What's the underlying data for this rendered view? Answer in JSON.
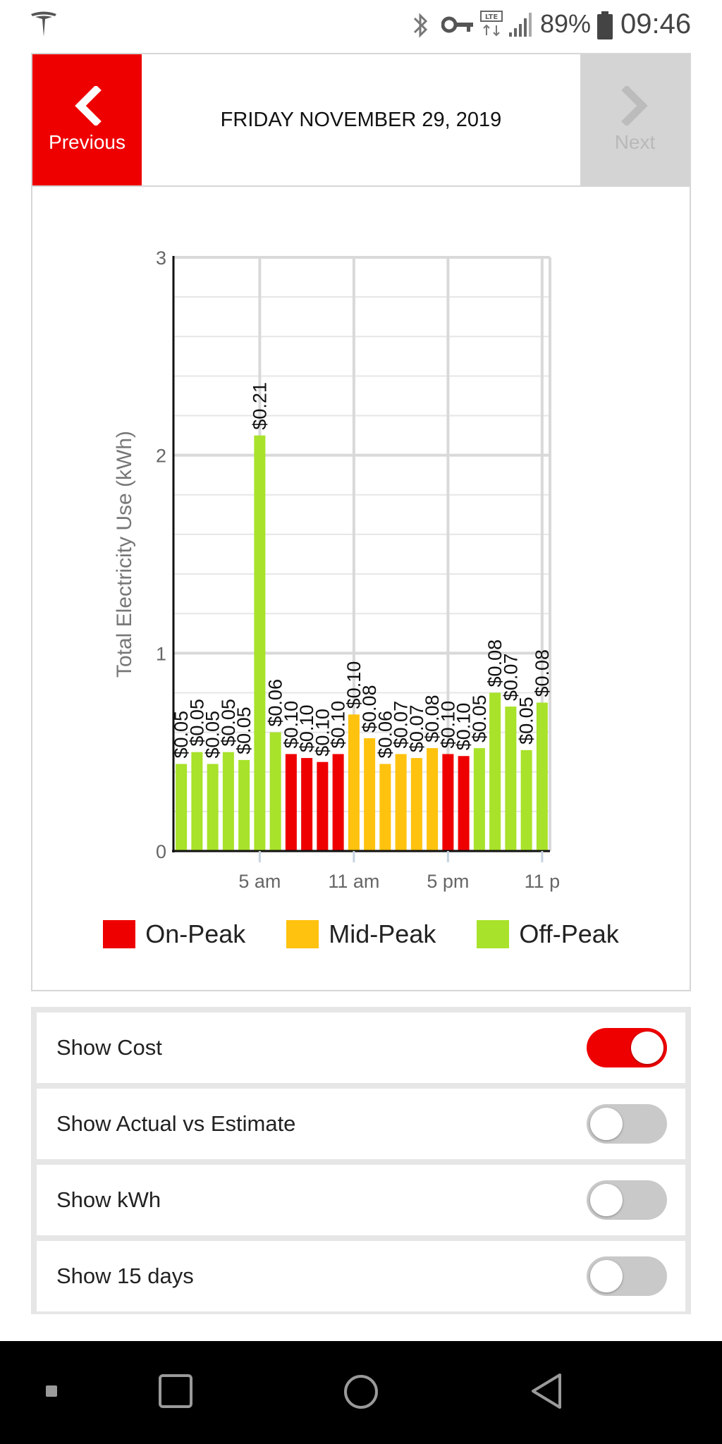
{
  "status_bar": {
    "battery_percent": "89%",
    "time": "09:46",
    "icons": [
      "tesla-logo-icon",
      "bluetooth-icon",
      "key-icon",
      "lte-icon",
      "signal-icon",
      "battery-icon"
    ]
  },
  "nav": {
    "previous_label": "Previous",
    "next_label": "Next",
    "date_title": "FRIDAY NOVEMBER 29, 2019",
    "next_enabled": false
  },
  "chart_data": {
    "type": "bar",
    "ylabel": "Total Electricity Use (kWh)",
    "ylim": [
      0,
      3
    ],
    "y_ticks": [
      "0",
      "1",
      "2",
      "3"
    ],
    "x_tick_labels": [
      "5 am",
      "11 am",
      "5 pm",
      "11 p"
    ],
    "x_tick_hours": [
      5,
      11,
      17,
      23
    ],
    "hours": [
      0,
      1,
      2,
      3,
      4,
      5,
      6,
      7,
      8,
      9,
      10,
      11,
      12,
      13,
      14,
      15,
      16,
      17,
      18,
      19,
      20,
      21,
      22,
      23
    ],
    "values": [
      0.44,
      0.5,
      0.44,
      0.5,
      0.46,
      2.1,
      0.6,
      0.49,
      0.47,
      0.45,
      0.49,
      0.69,
      0.57,
      0.44,
      0.49,
      0.47,
      0.52,
      0.49,
      0.48,
      0.52,
      0.8,
      0.73,
      0.51,
      0.75
    ],
    "periods": [
      "off",
      "off",
      "off",
      "off",
      "off",
      "off",
      "off",
      "on",
      "on",
      "on",
      "on",
      "mid",
      "mid",
      "mid",
      "mid",
      "mid",
      "mid",
      "on",
      "on",
      "off",
      "off",
      "off",
      "off",
      "off"
    ],
    "cost_labels": [
      "$0.05",
      "$0.05",
      "$0.05",
      "$0.05",
      "$0.05",
      "$0.21",
      "$0.06",
      "$0.10",
      "$0.10",
      "$0.10",
      "$0.10",
      "$0.10",
      "$0.08",
      "$0.06",
      "$0.07",
      "$0.07",
      "$0.08",
      "$0.10",
      "$0.10",
      "$0.05",
      "$0.08",
      "$0.07",
      "$0.05",
      "$0.08"
    ],
    "grid": true,
    "legend": [
      {
        "name": "On-Peak",
        "key": "on",
        "color": "#ee0000"
      },
      {
        "name": "Mid-Peak",
        "key": "mid",
        "color": "#ffc20e"
      },
      {
        "name": "Off-Peak",
        "key": "off",
        "color": "#a8e22a"
      }
    ],
    "legend_position": "bottom"
  },
  "settings": [
    {
      "label": "Show Cost",
      "on": true
    },
    {
      "label": "Show Actual vs Estimate",
      "on": false
    },
    {
      "label": "Show kWh",
      "on": false
    },
    {
      "label": "Show 15 days",
      "on": false
    }
  ],
  "android_nav": [
    "recents-small-icon",
    "overview-icon",
    "home-icon",
    "back-icon"
  ]
}
